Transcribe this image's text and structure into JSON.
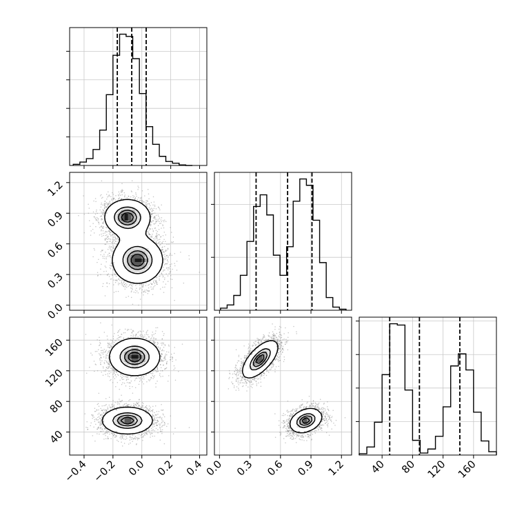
{
  "chart_data": {
    "type": "corner",
    "grid": true,
    "panels": [
      {
        "id": "hist-x",
        "type": "histogram",
        "variable": "x",
        "xlim": [
          -0.5,
          0.45
        ],
        "bin_edges": [
          -0.475,
          -0.429,
          -0.384,
          -0.338,
          -0.292,
          -0.246,
          -0.2,
          -0.154,
          -0.109,
          -0.063,
          -0.017,
          0.029,
          0.075,
          0.121,
          0.166,
          0.212,
          0.258,
          0.304,
          0.35
        ],
        "counts": [
          2,
          6,
          12,
          28,
          62,
          124,
          193,
          230,
          226,
          187,
          126,
          68,
          37,
          16,
          7,
          4,
          1,
          0
        ],
        "quantiles": [
          -0.17,
          -0.07,
          0.03
        ]
      },
      {
        "id": "hist-y",
        "type": "histogram",
        "variable": "y",
        "xlim": [
          -0.05,
          1.3
        ],
        "bin_edges": [
          0.01,
          0.075,
          0.14,
          0.205,
          0.27,
          0.335,
          0.4,
          0.465,
          0.53,
          0.595,
          0.66,
          0.725,
          0.79,
          0.855,
          0.92,
          0.985,
          1.05,
          1.115,
          1.18,
          1.245
        ],
        "counts": [
          2,
          5,
          14,
          33,
          65,
          98,
          109,
          90,
          52,
          33,
          60,
          103,
          124,
          118,
          85,
          45,
          12,
          3,
          1
        ],
        "quantiles": [
          0.36,
          0.67,
          0.91
        ]
      },
      {
        "id": "hist-z",
        "type": "histogram",
        "variable": "z",
        "xlim": [
          10,
          190
        ],
        "bin_edges": [
          10,
          20,
          30,
          40,
          50,
          60,
          70,
          80,
          90,
          100,
          110,
          120,
          130,
          140,
          150,
          160,
          170,
          180,
          190
        ],
        "counts": [
          2,
          12,
          49,
          120,
          196,
          194,
          97,
          22,
          3,
          9,
          28,
          72,
          133,
          151,
          127,
          64,
          21,
          5
        ],
        "quantiles": [
          50,
          89,
          142
        ]
      },
      {
        "id": "scatter-xy",
        "type": "2d-density",
        "x": "x",
        "y": "y",
        "xlim": [
          -0.5,
          0.45
        ],
        "ylim": [
          -0.05,
          1.3
        ],
        "components": [
          {
            "center": [
              -0.1,
              0.86
            ],
            "sd": [
              0.09,
              0.1
            ]
          },
          {
            "center": [
              -0.03,
              0.44
            ],
            "sd": [
              0.1,
              0.13
            ]
          }
        ]
      },
      {
        "id": "scatter-xz",
        "type": "2d-density",
        "x": "x",
        "y": "z",
        "xlim": [
          -0.5,
          0.45
        ],
        "ylim": [
          10,
          190
        ],
        "components": [
          {
            "center": [
              -0.05,
              138
            ],
            "sd": [
              0.1,
              14
            ]
          },
          {
            "center": [
              -0.1,
              55
            ],
            "sd": [
              0.1,
              10
            ]
          }
        ]
      },
      {
        "id": "scatter-yz",
        "type": "2d-density",
        "x": "y",
        "y": "z",
        "xlim": [
          -0.05,
          1.3
        ],
        "ylim": [
          10,
          190
        ],
        "components": [
          {
            "center": [
              0.4,
              135
            ],
            "sd": [
              0.1,
              14
            ],
            "rho": 0.65
          },
          {
            "center": [
              0.85,
              55
            ],
            "sd": [
              0.09,
              9
            ],
            "rho": 0.3
          }
        ]
      }
    ],
    "tick_labels": {
      "x": [
        "−0.4",
        "−0.2",
        "0.0",
        "0.2",
        "0.4"
      ],
      "y": [
        "0.0",
        "0.3",
        "0.6",
        "0.9",
        "1.2"
      ],
      "z": [
        "40",
        "80",
        "120",
        "160"
      ]
    },
    "tick_values": {
      "x": [
        -0.4,
        -0.2,
        0.0,
        0.2,
        0.4
      ],
      "y": [
        0.0,
        0.3,
        0.6,
        0.9,
        1.2
      ],
      "z": [
        40,
        80,
        120,
        160
      ]
    },
    "colors": {
      "line": "#000000",
      "grid": "#c8c8c8",
      "points": "#888888"
    }
  }
}
